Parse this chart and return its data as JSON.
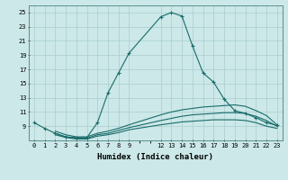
{
  "xlabel": "Humidex (Indice chaleur)",
  "background_color": "#cce8e8",
  "grid_color": "#aacece",
  "line_color": "#1a6b6b",
  "xlim": [
    -0.5,
    23.5
  ],
  "ylim": [
    7,
    26
  ],
  "xtick_positions": [
    0,
    1,
    2,
    3,
    4,
    5,
    6,
    7,
    8,
    9,
    12,
    13,
    14,
    15,
    16,
    17,
    18,
    19,
    20,
    21,
    22,
    23
  ],
  "xtick_labels": [
    "0",
    "1",
    "2",
    "3",
    "4",
    "5",
    "6",
    "7",
    "8",
    "9",
    "12",
    "13",
    "14",
    "15",
    "16",
    "17",
    "18",
    "19",
    "20",
    "21",
    "22",
    "23"
  ],
  "ytick_positions": [
    9,
    11,
    13,
    15,
    17,
    19,
    21,
    23,
    25
  ],
  "ytick_labels": [
    "9",
    "11",
    "13",
    "15",
    "17",
    "19",
    "21",
    "23",
    "25"
  ],
  "line1_x": [
    0,
    1,
    2,
    3,
    4,
    5,
    6,
    7,
    8,
    9,
    12,
    13,
    14,
    15,
    16,
    17,
    18,
    19,
    20,
    21,
    22,
    23
  ],
  "line1_y": [
    9.5,
    8.7,
    8.0,
    7.5,
    7.4,
    7.4,
    9.5,
    13.7,
    16.5,
    19.3,
    24.4,
    25.0,
    24.5,
    20.3,
    16.5,
    15.2,
    12.8,
    11.2,
    10.8,
    10.2,
    9.5,
    9.1
  ],
  "line2_x": [
    2,
    3,
    4,
    5,
    6,
    7,
    8,
    9,
    12,
    13,
    14,
    15,
    16,
    17,
    18,
    19,
    20,
    21,
    22,
    23
  ],
  "line2_y": [
    8.3,
    7.8,
    7.5,
    7.5,
    8.0,
    8.3,
    8.7,
    9.2,
    10.6,
    11.0,
    11.3,
    11.5,
    11.7,
    11.8,
    11.9,
    12.0,
    11.8,
    11.2,
    10.5,
    9.2
  ],
  "line3_x": [
    2,
    3,
    4,
    5,
    6,
    7,
    8,
    9,
    12,
    13,
    14,
    15,
    16,
    17,
    18,
    19,
    20,
    21,
    22,
    23
  ],
  "line3_y": [
    8.0,
    7.5,
    7.3,
    7.3,
    7.8,
    8.0,
    8.4,
    8.8,
    9.8,
    10.1,
    10.4,
    10.6,
    10.7,
    10.8,
    10.9,
    10.9,
    10.8,
    10.4,
    9.8,
    9.0
  ],
  "line4_x": [
    2,
    3,
    4,
    5,
    6,
    7,
    8,
    9,
    12,
    13,
    14,
    15,
    16,
    17,
    18,
    19,
    20,
    21,
    22,
    23
  ],
  "line4_y": [
    7.8,
    7.4,
    7.2,
    7.2,
    7.6,
    7.8,
    8.1,
    8.5,
    9.2,
    9.4,
    9.6,
    9.7,
    9.8,
    9.9,
    9.9,
    9.9,
    9.8,
    9.5,
    9.0,
    8.7
  ]
}
